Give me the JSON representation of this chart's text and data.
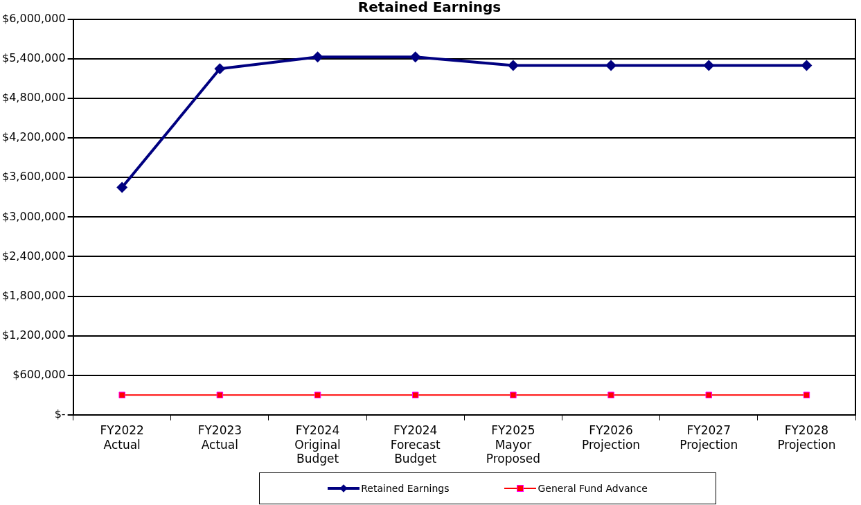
{
  "chart_data": {
    "type": "line",
    "title": "Retained Earnings",
    "categories": [
      "FY2022 Actual",
      "FY2023 Actual",
      "FY2024 Original Budget",
      "FY2024 Forecast Budget",
      "FY2025 Mayor Proposed",
      "FY2026 Projection",
      "FY2027 Projection",
      "FY2028 Projection"
    ],
    "series": [
      {
        "name": "Retained Earnings",
        "color": "#000080",
        "marker": "diamond",
        "values": [
          3450000,
          5250000,
          5430000,
          5430000,
          5300000,
          5300000,
          5300000,
          5300000
        ]
      },
      {
        "name": "General Fund Advance",
        "color": "#ff0000",
        "marker": "square",
        "values": [
          300000,
          300000,
          300000,
          300000,
          300000,
          300000,
          300000,
          300000
        ]
      }
    ],
    "ylim": [
      0,
      6000000
    ],
    "yticks": [
      {
        "value": 0,
        "label": "$-"
      },
      {
        "value": 600000,
        "label": "$600,000"
      },
      {
        "value": 1200000,
        "label": "$1,200,000"
      },
      {
        "value": 1800000,
        "label": "$1,800,000"
      },
      {
        "value": 2400000,
        "label": "$2,400,000"
      },
      {
        "value": 3000000,
        "label": "$3,000,000"
      },
      {
        "value": 3600000,
        "label": "$3,600,000"
      },
      {
        "value": 4200000,
        "label": "$4,200,000"
      },
      {
        "value": 4800000,
        "label": "$4,800,000"
      },
      {
        "value": 5400000,
        "label": "$5,400,000"
      },
      {
        "value": 6000000,
        "label": "$6,000,000"
      }
    ],
    "grid": "y",
    "legend": "bottom",
    "line_style": "solid"
  }
}
